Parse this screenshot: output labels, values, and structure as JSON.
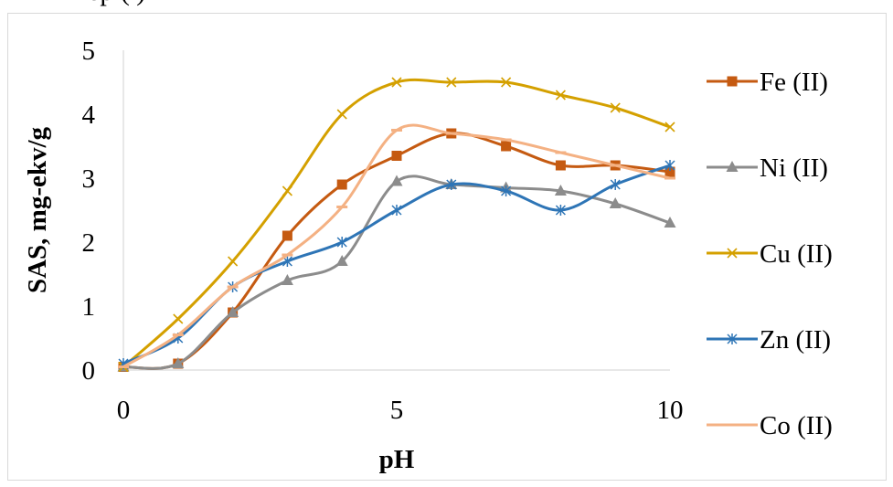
{
  "header": {
    "caption": "ep       (            )"
  },
  "chart_data": {
    "type": "line",
    "title": "",
    "xlabel": "pH",
    "ylabel": "SAS, mg-ekv/g",
    "xlim": [
      0,
      10
    ],
    "ylim": [
      0,
      5
    ],
    "x_ticks": [
      0,
      5,
      10
    ],
    "y_ticks": [
      0,
      1,
      2,
      3,
      4,
      5
    ],
    "grid": false,
    "smooth": true,
    "legend_position": "right",
    "x": [
      0,
      1,
      2,
      3,
      4,
      5,
      6,
      7,
      8,
      9,
      10
    ],
    "series": [
      {
        "name": "Fe (II)",
        "color": "#c55a11",
        "marker": "square",
        "values": [
          0.05,
          0.1,
          0.9,
          2.1,
          2.9,
          3.35,
          3.7,
          3.5,
          3.2,
          3.2,
          3.1
        ]
      },
      {
        "name": "Ni (II)",
        "color": "#8c8c8c",
        "marker": "triangle",
        "values": [
          0.05,
          0.1,
          0.9,
          1.4,
          1.7,
          2.95,
          2.9,
          2.85,
          2.8,
          2.6,
          2.3
        ]
      },
      {
        "name": "Cu (II)",
        "color": "#d4a000",
        "marker": "x",
        "values": [
          0.05,
          0.8,
          1.7,
          2.8,
          4.0,
          4.5,
          4.5,
          4.5,
          4.3,
          4.1,
          3.8
        ]
      },
      {
        "name": "Zn (II)",
        "color": "#2e75b6",
        "marker": "star",
        "values": [
          0.1,
          0.5,
          1.3,
          1.7,
          2.0,
          2.5,
          2.9,
          2.8,
          2.5,
          2.9,
          3.2
        ]
      },
      {
        "name": "Co (II)",
        "color": "#f4b183",
        "marker": "dash",
        "values": [
          0.05,
          0.55,
          1.3,
          1.8,
          2.55,
          3.75,
          3.7,
          3.6,
          3.4,
          3.2,
          3.0
        ]
      }
    ]
  }
}
